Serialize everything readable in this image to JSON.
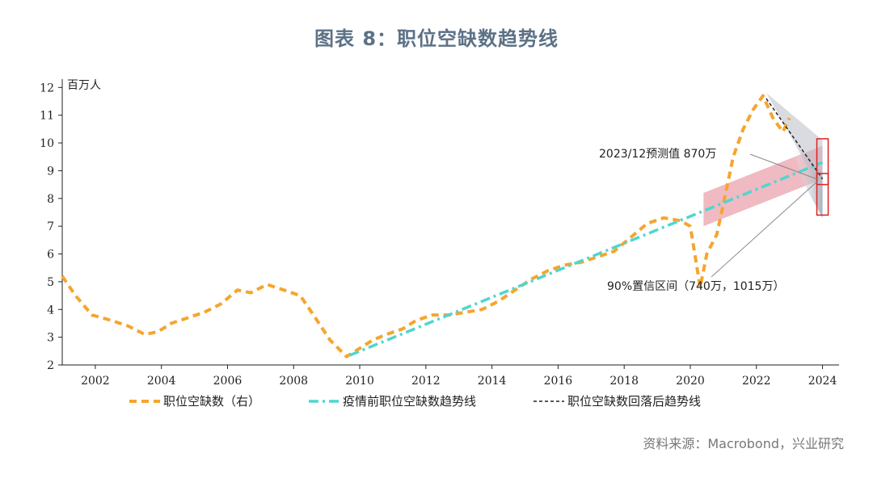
{
  "title": "图表 8：职位空缺数趋势线",
  "source": "资料来源：Macrobond，兴业研究",
  "chart_data": {
    "type": "line",
    "unit_label": "百万人",
    "xlim": [
      2001,
      2024.5
    ],
    "ylim": [
      2,
      12.3
    ],
    "x_ticks": [
      2002,
      2004,
      2006,
      2008,
      2010,
      2012,
      2014,
      2016,
      2018,
      2020,
      2022,
      2024
    ],
    "y_ticks": [
      2,
      3,
      4,
      5,
      6,
      7,
      8,
      9,
      10,
      11,
      12
    ],
    "grid": false,
    "legend_position": "bottom",
    "colors": {
      "openings": "#f5a52e",
      "pre_trend": "#4fd6d0",
      "post_trend": "#222222",
      "band": "#e9a3ad",
      "cone": "#b9bec8",
      "marker": "#e02020"
    },
    "series": [
      {
        "name": "职位空缺数（右）",
        "style": "dashed",
        "x": [
          2001.0,
          2001.4,
          2001.9,
          2002.5,
          2003.0,
          2003.5,
          2003.9,
          2004.3,
          2004.8,
          2005.3,
          2005.8,
          2006.3,
          2006.7,
          2007.2,
          2007.7,
          2008.2,
          2008.6,
          2009.1,
          2009.6,
          2010.0,
          2010.4,
          2010.8,
          2011.3,
          2011.7,
          2012.2,
          2012.7,
          2013.2,
          2013.7,
          2014.2,
          2014.7,
          2015.2,
          2015.7,
          2016.2,
          2016.7,
          2017.2,
          2017.7,
          2018.2,
          2018.7,
          2019.2,
          2019.7,
          2020.0,
          2020.3,
          2020.5,
          2020.8,
          2021.0,
          2021.3,
          2021.6,
          2021.9,
          2022.2,
          2022.5,
          2022.8,
          2023.0
        ],
        "y": [
          5.2,
          4.5,
          3.8,
          3.6,
          3.4,
          3.1,
          3.2,
          3.5,
          3.7,
          3.9,
          4.2,
          4.7,
          4.6,
          4.9,
          4.7,
          4.5,
          3.8,
          2.9,
          2.3,
          2.6,
          2.9,
          3.1,
          3.3,
          3.6,
          3.8,
          3.8,
          3.9,
          4.0,
          4.3,
          4.7,
          5.1,
          5.4,
          5.6,
          5.7,
          5.9,
          6.1,
          6.6,
          7.1,
          7.3,
          7.2,
          7.0,
          4.8,
          6.0,
          6.7,
          7.8,
          9.5,
          10.5,
          11.2,
          11.7,
          10.9,
          10.4,
          10.9
        ]
      },
      {
        "name": "疫情前职位空缺数趋势线",
        "style": "dashdot",
        "x": [
          2009.7,
          2024.0
        ],
        "y": [
          2.35,
          9.3
        ]
      },
      {
        "name": "职位空缺数回落后趋势线",
        "style": "dotted",
        "x": [
          2022.3,
          2024.0
        ],
        "y": [
          11.6,
          8.7
        ]
      }
    ],
    "forecast_band": {
      "x": [
        2020.4,
        2024.0
      ],
      "lower": [
        7.0,
        8.7
      ],
      "upper": [
        8.2,
        9.9
      ]
    },
    "annotations": {
      "forecast": "2023/12预测值 870万",
      "interval": "90%置信区间（740万，1015万）"
    },
    "forecast_point": {
      "x": 2024.0,
      "value": 8.7,
      "ci_low": 7.4,
      "ci_high": 10.15
    }
  }
}
